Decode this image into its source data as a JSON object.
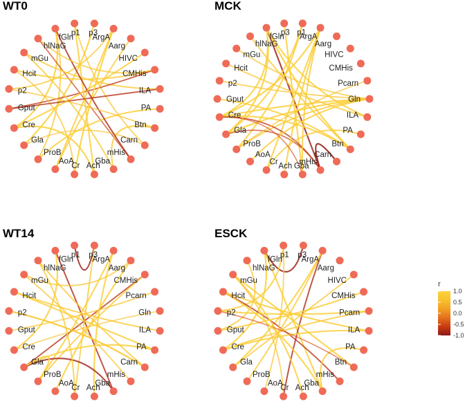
{
  "chart_data": {
    "type": "chord-network",
    "title": "",
    "legend": {
      "title": "r",
      "ticks": [
        "1.0",
        "0.5",
        "0.0",
        "-0.5",
        "-1.0"
      ],
      "range": [
        -1.0,
        1.0
      ],
      "colors": [
        "#8b1a1a",
        "#cc3a10",
        "#e2711d",
        "#f2a024",
        "#f8c12e",
        "#fcd33d"
      ],
      "placement": "right"
    },
    "node_color": "#ef6b57",
    "panels": [
      {
        "id": "wt0",
        "title": "WT0",
        "nodes": [
          "hlNaG",
          "fGln",
          "p1",
          "p3",
          "ArgA",
          "Aarg",
          "HIVC",
          "CMHis",
          "ILA",
          "PA",
          "Btn",
          "Carn",
          "mHis",
          "Gba",
          "Ach",
          "Cr",
          "AoA",
          "ProB",
          "Gla",
          "Cre",
          "Gput",
          "p2",
          "Hcit",
          "mGu"
        ],
        "edges": [
          {
            "source": "fGln",
            "target": "Cre",
            "r": 0.9
          },
          {
            "source": "fGln",
            "target": "ProB",
            "r": 0.8
          },
          {
            "source": "p3",
            "target": "Gla",
            "r": 0.95
          },
          {
            "source": "p1",
            "target": "Carn",
            "r": 0.7
          },
          {
            "source": "hlNaG",
            "target": "mHis",
            "r": -0.6
          },
          {
            "source": "mGu",
            "target": "ILA",
            "r": 0.8
          },
          {
            "source": "Hcit",
            "target": "CMHis",
            "r": 0.85
          },
          {
            "source": "Gput",
            "target": "CMHis",
            "r": -0.7
          },
          {
            "source": "p2",
            "target": "ArgA",
            "r": 0.75
          },
          {
            "source": "Cre",
            "target": "HIVC",
            "r": 0.9
          },
          {
            "source": "AoA",
            "target": "Aarg",
            "r": 0.8
          },
          {
            "source": "Cr",
            "target": "ArgA",
            "r": 0.95
          },
          {
            "source": "Ach",
            "target": "p1",
            "r": 0.9
          },
          {
            "source": "Gba",
            "target": "Btn",
            "r": 0.85
          },
          {
            "source": "ProB",
            "target": "PA",
            "r": 0.9
          },
          {
            "source": "Gla",
            "target": "Carn",
            "r": 0.6
          },
          {
            "source": "mGu",
            "target": "Gba",
            "r": 0.8
          },
          {
            "source": "Hcit",
            "target": "Cr",
            "r": 0.7
          },
          {
            "source": "fGln",
            "target": "mHis",
            "r": -0.8
          },
          {
            "source": "ArgA",
            "target": "AoA",
            "r": 0.85
          },
          {
            "source": "Gput",
            "target": "ILA",
            "r": -0.75
          },
          {
            "source": "p2",
            "target": "Btn",
            "r": 0.65
          },
          {
            "source": "hlNaG",
            "target": "CMHis",
            "r": 0.7
          },
          {
            "source": "Cre",
            "target": "Ach",
            "r": 0.9
          }
        ]
      },
      {
        "id": "mck",
        "title": "MCK",
        "nodes": [
          "hlNaG",
          "fGln",
          "p3",
          "p1",
          "ArgA",
          "Aarg",
          "HIVC",
          "CMHis",
          "Pcarn",
          "Gln",
          "ILA",
          "PA",
          "Btn",
          "Carn",
          "mHis",
          "Gba",
          "Ach",
          "Cr",
          "AoA",
          "ProB",
          "Gla",
          "Cre",
          "Gput",
          "p2",
          "Hcit",
          "mGu"
        ],
        "edges": [
          {
            "source": "fGln",
            "target": "mHis",
            "r": -0.9
          },
          {
            "source": "fGln",
            "target": "Btn",
            "r": 0.95
          },
          {
            "source": "fGln",
            "target": "Cre",
            "r": 0.9
          },
          {
            "source": "p1",
            "target": "ProB",
            "r": 0.9
          },
          {
            "source": "p1",
            "target": "Gla",
            "r": 0.85
          },
          {
            "source": "p3",
            "target": "Gba",
            "r": 0.9
          },
          {
            "source": "ArgA",
            "target": "Cre",
            "r": 0.95
          },
          {
            "source": "ArgA",
            "target": "Cr",
            "r": 0.9
          },
          {
            "source": "Gln",
            "target": "Gla",
            "r": 0.95
          },
          {
            "source": "Gln",
            "target": "Cre",
            "r": 0.9
          },
          {
            "source": "Gln",
            "target": "ProB",
            "r": 0.8
          },
          {
            "source": "Cre",
            "target": "Btn",
            "r": 0.9
          },
          {
            "source": "Cre",
            "target": "mHis",
            "r": -0.7
          },
          {
            "source": "Gla",
            "target": "mHis",
            "r": -0.6
          },
          {
            "source": "mHis",
            "target": "Carn",
            "r": -0.95
          },
          {
            "source": "hlNaG",
            "target": "Btn",
            "r": 0.8
          },
          {
            "source": "mGu",
            "target": "Gln",
            "r": 0.7
          },
          {
            "source": "Hcit",
            "target": "ILA",
            "r": 0.75
          },
          {
            "source": "AoA",
            "target": "Gln",
            "r": 0.85
          },
          {
            "source": "Cr",
            "target": "PA",
            "r": 0.8
          },
          {
            "source": "Ach",
            "target": "ArgA",
            "r": 0.9
          },
          {
            "source": "Gput",
            "target": "Btn",
            "r": 0.85
          },
          {
            "source": "p2",
            "target": "Gln",
            "r": 0.7
          },
          {
            "source": "ProB",
            "target": "Pcarn",
            "r": 0.6
          },
          {
            "source": "fGln",
            "target": "ILA",
            "r": 0.9
          },
          {
            "source": "fGln",
            "target": "Gla",
            "r": 0.95
          },
          {
            "source": "Gba",
            "target": "ArgA",
            "r": 0.85
          },
          {
            "source": "Cre",
            "target": "Gba",
            "r": -0.5
          }
        ]
      },
      {
        "id": "wt14",
        "title": "WT14",
        "nodes": [
          "hlNaG",
          "fGln",
          "p1",
          "p3",
          "ArgA",
          "Aarg",
          "CMHis",
          "Pcarn",
          "Gln",
          "ILA",
          "PA",
          "Carn",
          "mHis",
          "Gba",
          "Ach",
          "Cr",
          "AoA",
          "ProB",
          "Gla",
          "Cre",
          "Gput",
          "p2",
          "Hcit",
          "mGu"
        ],
        "edges": [
          {
            "source": "p1",
            "target": "p3",
            "r": -0.9
          },
          {
            "source": "fGln",
            "target": "Gba",
            "r": -0.8
          },
          {
            "source": "fGln",
            "target": "Cre",
            "r": 0.9
          },
          {
            "source": "p3",
            "target": "Cr",
            "r": 0.8
          },
          {
            "source": "ArgA",
            "target": "Ach",
            "r": 0.9
          },
          {
            "source": "ArgA",
            "target": "ProB",
            "r": 0.85
          },
          {
            "source": "CMHis",
            "target": "Gla",
            "r": -0.75
          },
          {
            "source": "CMHis",
            "target": "ProB",
            "r": 0.8
          },
          {
            "source": "Aarg",
            "target": "AoA",
            "r": 0.9
          },
          {
            "source": "Pcarn",
            "target": "Gput",
            "r": 0.7
          },
          {
            "source": "ILA",
            "target": "Hcit",
            "r": 0.8
          },
          {
            "source": "PA",
            "target": "Gla",
            "r": 0.9
          },
          {
            "source": "Carn",
            "target": "p2",
            "r": 0.85
          },
          {
            "source": "mHis",
            "target": "mGu",
            "r": 0.7
          },
          {
            "source": "Gba",
            "target": "Gla",
            "r": -0.85
          },
          {
            "source": "Cre",
            "target": "Gln",
            "r": 0.6
          },
          {
            "source": "hlNaG",
            "target": "Carn",
            "r": 0.8
          },
          {
            "source": "Hcit",
            "target": "PA",
            "r": 0.9
          },
          {
            "source": "p2",
            "target": "Carn",
            "r": 0.75
          },
          {
            "source": "mGu",
            "target": "Aarg",
            "r": 0.7
          },
          {
            "source": "Gla",
            "target": "ProB",
            "r": 0.9
          },
          {
            "source": "Cr",
            "target": "hlNaG",
            "r": 0.8
          }
        ]
      },
      {
        "id": "esck",
        "title": "ESCK",
        "nodes": [
          "hlNaG",
          "fGln",
          "p1",
          "p3",
          "ArgA",
          "Aarg",
          "HIVC",
          "CMHis",
          "Pcarn",
          "ILA",
          "PA",
          "Btn",
          "mHis",
          "Gba",
          "Ach",
          "Cr",
          "AoA",
          "ProB",
          "Gla",
          "Cre",
          "Gput",
          "p2",
          "Hcit",
          "mGu"
        ],
        "edges": [
          {
            "source": "fGln",
            "target": "p3",
            "r": -0.9
          },
          {
            "source": "fGln",
            "target": "Cre",
            "r": 0.95
          },
          {
            "source": "fGln",
            "target": "Gba",
            "r": 0.9
          },
          {
            "source": "p1",
            "target": "p2",
            "r": 0.85
          },
          {
            "source": "ArgA",
            "target": "Cr",
            "r": -0.8
          },
          {
            "source": "ArgA",
            "target": "Gla",
            "r": 0.9
          },
          {
            "source": "Hcit",
            "target": "mHis",
            "r": -0.75
          },
          {
            "source": "Hcit",
            "target": "ILA",
            "r": 0.85
          },
          {
            "source": "mGu",
            "target": "Btn",
            "r": 0.9
          },
          {
            "source": "Cre",
            "target": "Pcarn",
            "r": 0.8
          },
          {
            "source": "Cre",
            "target": "ILA",
            "r": 0.9
          },
          {
            "source": "Gput",
            "target": "CMHis",
            "r": 0.85
          },
          {
            "source": "p2",
            "target": "Pcarn",
            "r": 0.9
          },
          {
            "source": "ProB",
            "target": "ArgA",
            "r": 0.8
          },
          {
            "source": "Gla",
            "target": "HIVC",
            "r": 0.75
          },
          {
            "source": "AoA",
            "target": "p1",
            "r": 0.7
          },
          {
            "source": "Ach",
            "target": "mGu",
            "r": 0.85
          },
          {
            "source": "Gba",
            "target": "PA",
            "r": 0.9
          },
          {
            "source": "hlNaG",
            "target": "Gput",
            "r": 0.8
          },
          {
            "source": "Cr",
            "target": "mGu",
            "r": 0.7
          },
          {
            "source": "p2",
            "target": "Btn",
            "r": -0.5
          },
          {
            "source": "Hcit",
            "target": "Gba",
            "r": 0.9
          }
        ]
      }
    ]
  }
}
